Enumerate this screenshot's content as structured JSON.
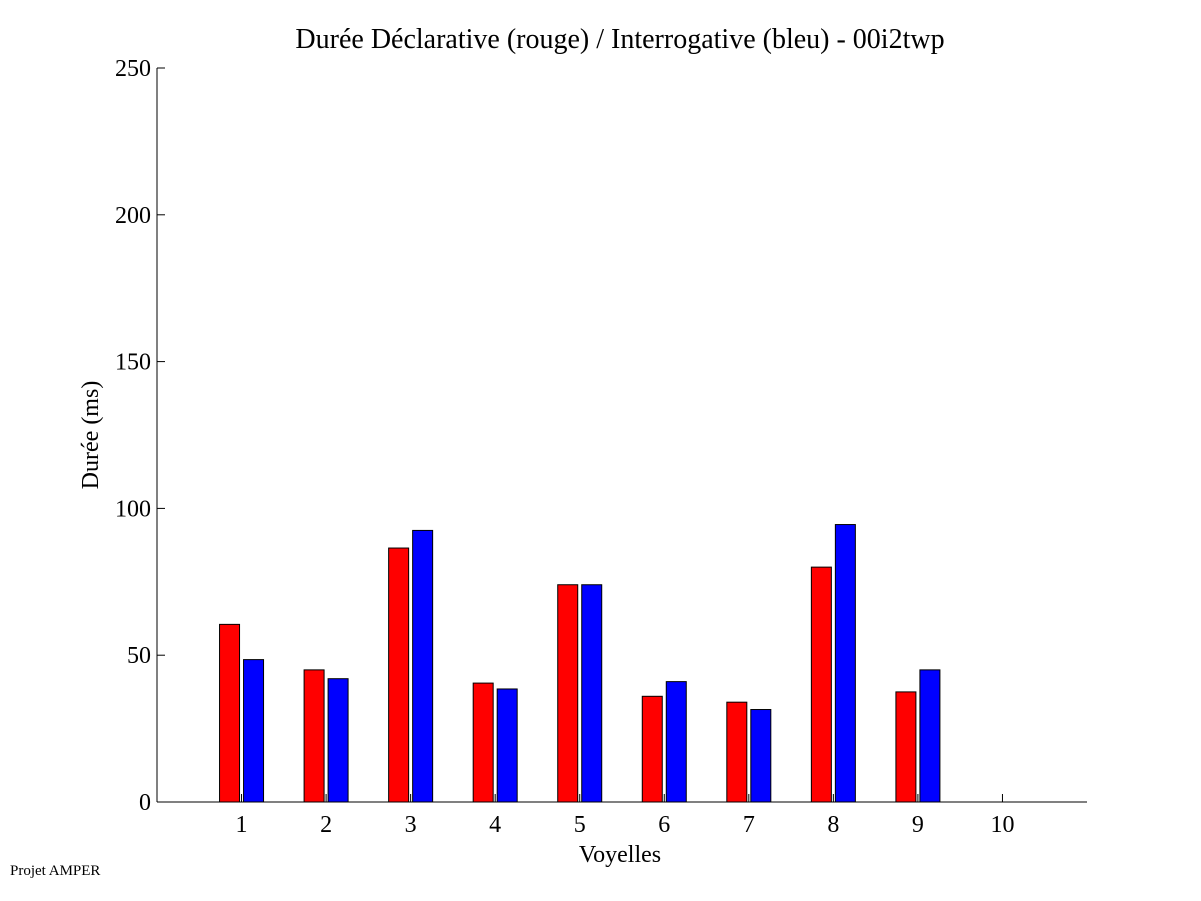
{
  "footer": {
    "text": "Projet AMPER"
  },
  "chart_data": {
    "type": "bar",
    "title": "Durée Déclarative (rouge) / Interrogative (bleu) - 00i2twp",
    "xlabel": "Voyelles",
    "ylabel": "Durée (ms)",
    "ylim": [
      0,
      250
    ],
    "xlim": [
      0,
      11
    ],
    "yticks": [
      0,
      50,
      100,
      150,
      200,
      250
    ],
    "categories": [
      "1",
      "2",
      "3",
      "4",
      "5",
      "6",
      "7",
      "8",
      "9",
      "10"
    ],
    "grid": false,
    "legend": "none",
    "series": [
      {
        "color": "#ff0000",
        "values": [
          60.5,
          45,
          86.5,
          40.5,
          74,
          36,
          34,
          80,
          37.5,
          null
        ]
      },
      {
        "color": "#0000ff",
        "values": [
          48.5,
          42,
          92.5,
          38.5,
          74,
          41,
          31.5,
          94.5,
          45,
          null
        ]
      }
    ]
  }
}
